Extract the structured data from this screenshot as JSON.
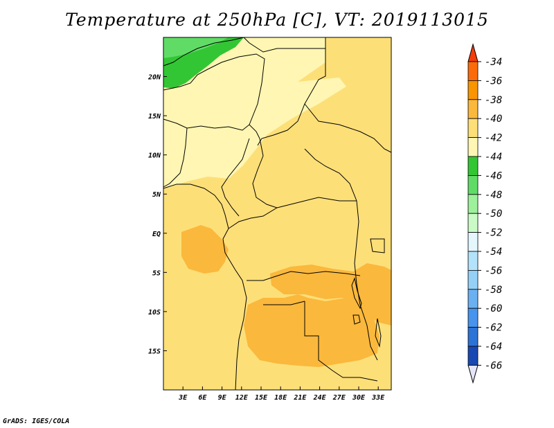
{
  "title": "Temperature at 250hPa [C], VT: 2019113015",
  "footer": "GrADS: IGES/COLA",
  "map": {
    "lon_range": [
      0,
      35
    ],
    "lat_range": [
      -20,
      25
    ],
    "lat_ticks": [
      {
        "lat": 20,
        "label": "20N"
      },
      {
        "lat": 15,
        "label": "15N"
      },
      {
        "lat": 10,
        "label": "10N"
      },
      {
        "lat": 5,
        "label": "5N"
      },
      {
        "lat": 0,
        "label": "EQ"
      },
      {
        "lat": -5,
        "label": "5S"
      },
      {
        "lat": -10,
        "label": "10S"
      },
      {
        "lat": -15,
        "label": "15S"
      }
    ],
    "lon_ticks": [
      {
        "lon": 3,
        "label": "3E"
      },
      {
        "lon": 6,
        "label": "6E"
      },
      {
        "lon": 9,
        "label": "9E"
      },
      {
        "lon": 12,
        "label": "12E"
      },
      {
        "lon": 15,
        "label": "15E"
      },
      {
        "lon": 18,
        "label": "18E"
      },
      {
        "lon": 21,
        "label": "21E"
      },
      {
        "lon": 24,
        "label": "24E"
      },
      {
        "lon": 27,
        "label": "27E"
      },
      {
        "lon": 30,
        "label": "30E"
      },
      {
        "lon": 33,
        "label": "33E"
      }
    ]
  },
  "colorbar": {
    "levels": [
      {
        "label": "-34",
        "color": "#fb6b0b"
      },
      {
        "label": "-36",
        "color": "#f89500"
      },
      {
        "label": "-38",
        "color": "#fab83c"
      },
      {
        "label": "-40",
        "color": "#fddf78"
      },
      {
        "label": "-42",
        "color": "#fef6b2"
      },
      {
        "label": "-44",
        "color": "#33c634"
      },
      {
        "label": "-46",
        "color": "#60dc66"
      },
      {
        "label": "-48",
        "color": "#9cf19a"
      },
      {
        "label": "-50",
        "color": "#cafbc6"
      },
      {
        "label": "-52",
        "color": "#e3f7fd"
      },
      {
        "label": "-54",
        "color": "#b3e2fb"
      },
      {
        "label": "-56",
        "color": "#95d1f7"
      },
      {
        "label": "-58",
        "color": "#6bb1f1"
      },
      {
        "label": "-60",
        "color": "#4794ee"
      },
      {
        "label": "-62",
        "color": "#2b73d6"
      },
      {
        "label": "-64",
        "color": "#1849b3"
      },
      {
        "label": "-66",
        "color": "#0d0e6a"
      }
    ],
    "top_color": "#f43d0a",
    "bottom_color": "#e6e6fa"
  },
  "palette": {
    "base": "#fddf78",
    "warm": "#fab83c",
    "cool": "#fef6b2",
    "cold_green": "#33c634",
    "light_green": "#60dc66"
  }
}
